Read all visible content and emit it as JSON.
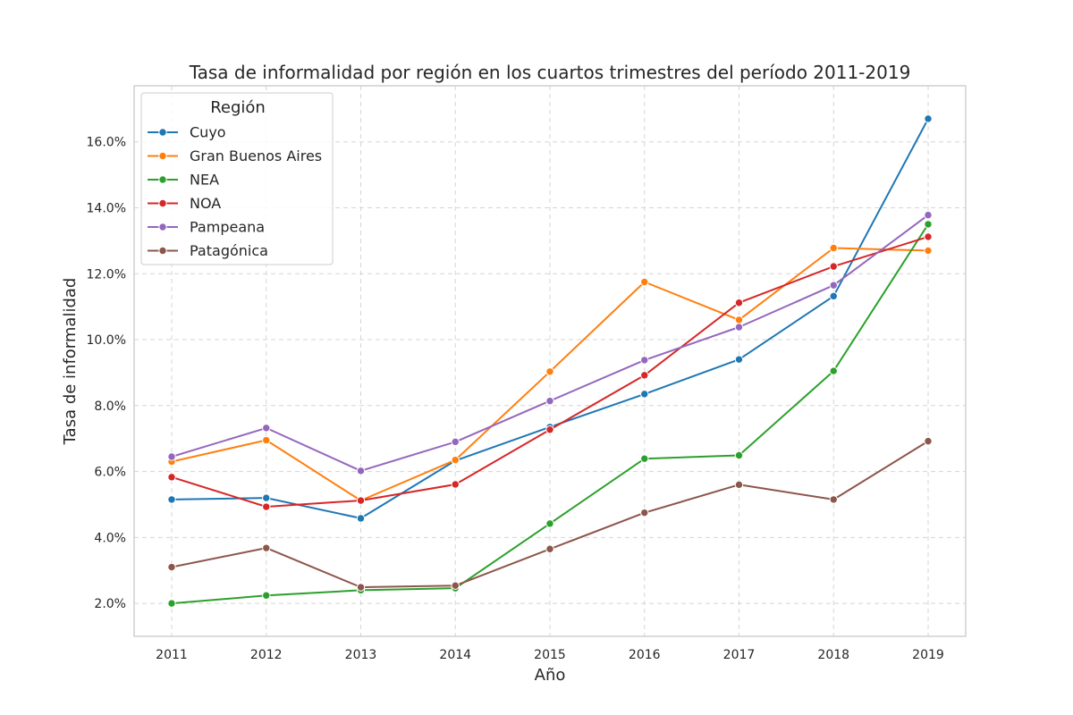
{
  "chart_data": {
    "type": "line",
    "title": "Tasa de informalidad por región en los cuartos trimestres del período 2011-2019",
    "xlabel": "Año",
    "ylabel": "Tasa de informalidad",
    "x": [
      2011,
      2012,
      2013,
      2014,
      2015,
      2016,
      2017,
      2018,
      2019
    ],
    "x_tick_labels": [
      "2011",
      "2012",
      "2013",
      "2014",
      "2015",
      "2016",
      "2017",
      "2018",
      "2019"
    ],
    "y_unit": "%",
    "ylim": [
      1.0,
      17.7
    ],
    "y_ticks": [
      2,
      4,
      6,
      8,
      10,
      12,
      14,
      16
    ],
    "y_tick_labels": [
      "2.0%",
      "4.0%",
      "6.0%",
      "8.0%",
      "10.0%",
      "12.0%",
      "14.0%",
      "16.0%"
    ],
    "grid": true,
    "grid_style": "dashed",
    "legend": {
      "title": "Región",
      "position": "top-left"
    },
    "series": [
      {
        "name": "Cuyo",
        "color": "#1f77b4",
        "values": [
          5.15,
          5.2,
          4.58,
          6.33,
          7.35,
          8.35,
          9.4,
          11.32,
          16.7
        ]
      },
      {
        "name": "Gran Buenos Aires",
        "color": "#ff7f0e",
        "values": [
          6.3,
          6.95,
          5.12,
          6.35,
          9.03,
          11.75,
          10.6,
          12.78,
          12.7
        ]
      },
      {
        "name": "NEA",
        "color": "#2ca02c",
        "values": [
          2.0,
          2.24,
          2.4,
          2.46,
          4.42,
          6.39,
          6.49,
          9.05,
          13.5
        ]
      },
      {
        "name": "NOA",
        "color": "#d62728",
        "values": [
          5.83,
          4.93,
          5.12,
          5.61,
          7.27,
          8.92,
          11.12,
          12.22,
          13.12
        ]
      },
      {
        "name": "Pampeana",
        "color": "#9467bd",
        "values": [
          6.45,
          7.32,
          6.02,
          6.9,
          8.14,
          9.38,
          10.38,
          11.65,
          13.78
        ]
      },
      {
        "name": "Patagónica",
        "color": "#8c564b",
        "values": [
          3.1,
          3.68,
          2.49,
          2.54,
          3.65,
          4.75,
          5.6,
          5.15,
          6.92
        ]
      }
    ]
  }
}
